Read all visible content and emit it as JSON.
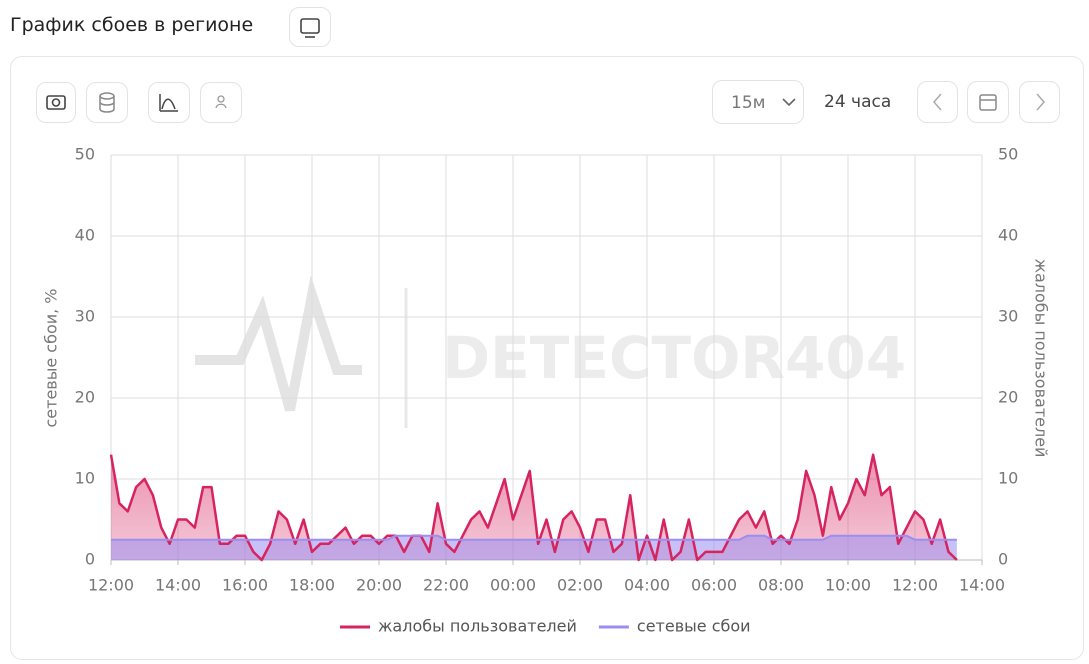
{
  "page_title": "График сбоев в регионе",
  "toolbar": {
    "interval": "15м",
    "range": "24 часа"
  },
  "chart_data": {
    "type": "line",
    "watermark": "DETECTOR404",
    "ylabel": "сетевые сбои, %",
    "y2label": "жалобы пользователей",
    "xlim": [
      0,
      26
    ],
    "xticks": [
      {
        "value": 0,
        "label": "12:00"
      },
      {
        "value": 2,
        "label": "14:00"
      },
      {
        "value": 4,
        "label": "16:00"
      },
      {
        "value": 6,
        "label": "18:00"
      },
      {
        "value": 8,
        "label": "20:00"
      },
      {
        "value": 10,
        "label": "22:00"
      },
      {
        "value": 12,
        "label": "00:00"
      },
      {
        "value": 14,
        "label": "02:00"
      },
      {
        "value": 16,
        "label": "04:00"
      },
      {
        "value": 18,
        "label": "06:00"
      },
      {
        "value": 20,
        "label": "08:00"
      },
      {
        "value": 22,
        "label": "10:00"
      },
      {
        "value": 24,
        "label": "12:00"
      },
      {
        "value": 26,
        "label": "14:00"
      }
    ],
    "ylim": [
      0,
      50
    ],
    "yticks": [
      0,
      10,
      20,
      30,
      40,
      50
    ],
    "y2lim": [
      0,
      50
    ],
    "y2ticks": [
      0,
      10,
      20,
      30,
      40,
      50
    ],
    "grid": true,
    "x": [
      0,
      0.25,
      0.5,
      0.75,
      1,
      1.25,
      1.5,
      1.75,
      2,
      2.25,
      2.5,
      2.75,
      3,
      3.25,
      3.5,
      3.75,
      4,
      4.25,
      4.5,
      4.75,
      5,
      5.25,
      5.5,
      5.75,
      6,
      6.25,
      6.5,
      6.75,
      7,
      7.25,
      7.5,
      7.75,
      8,
      8.25,
      8.5,
      8.75,
      9,
      9.25,
      9.5,
      9.75,
      10,
      10.25,
      10.5,
      10.75,
      11,
      11.25,
      11.5,
      11.75,
      12,
      12.25,
      12.5,
      12.75,
      13,
      13.25,
      13.5,
      13.75,
      14,
      14.25,
      14.5,
      14.75,
      15,
      15.25,
      15.5,
      15.75,
      16,
      16.25,
      16.5,
      16.75,
      17,
      17.25,
      17.5,
      17.75,
      18,
      18.25,
      18.5,
      18.75,
      19,
      19.25,
      19.5,
      19.75,
      20,
      20.25,
      20.5,
      20.75,
      21,
      21.25,
      21.5,
      21.75,
      22,
      22.25,
      22.5,
      22.75,
      23,
      23.25,
      23.5,
      23.75,
      24,
      24.25,
      24.5,
      24.75,
      25,
      25.25
    ],
    "series": [
      {
        "name": "жалобы пользователей",
        "color": "#d6245f",
        "axis": "y2",
        "values": [
          13,
          7,
          6,
          9,
          10,
          8,
          4,
          2,
          5,
          5,
          4,
          9,
          9,
          2,
          2,
          3,
          3,
          1,
          0,
          2,
          6,
          5,
          2,
          5,
          1,
          2,
          2,
          3,
          4,
          2,
          3,
          3,
          2,
          3,
          3,
          1,
          3,
          3,
          1,
          7,
          2,
          1,
          3,
          5,
          6,
          4,
          7,
          10,
          5,
          8,
          11,
          2,
          5,
          1,
          5,
          6,
          4,
          1,
          5,
          5,
          1,
          2,
          8,
          0,
          3,
          0,
          5,
          0,
          1,
          5,
          0,
          1,
          1,
          1,
          3,
          5,
          6,
          4,
          6,
          2,
          3,
          2,
          5,
          11,
          8,
          3,
          9,
          5,
          7,
          10,
          8,
          13,
          8,
          9,
          2,
          4,
          6,
          5,
          2,
          5,
          1,
          0
        ]
      },
      {
        "name": "сетевые сбои",
        "color": "#9b8ef0",
        "values": [
          2.5,
          2.5,
          2.5,
          2.5,
          2.5,
          2.5,
          2.5,
          2.5,
          2.5,
          2.5,
          2.5,
          2.5,
          2.5,
          2.5,
          2.5,
          2.5,
          2.5,
          2.5,
          2.5,
          2.5,
          2.5,
          2.5,
          2.5,
          2.5,
          2.5,
          2.5,
          2.5,
          2.5,
          2.5,
          2.5,
          2.5,
          2.5,
          2.5,
          2.5,
          3,
          3,
          3,
          3,
          3,
          3,
          2.5,
          2.5,
          2.5,
          2.5,
          2.5,
          2.5,
          2.5,
          2.5,
          2.5,
          2.5,
          2.5,
          2.5,
          2.5,
          2.5,
          2.5,
          2.5,
          2.5,
          2.5,
          2.5,
          2.5,
          2.5,
          2.5,
          2.5,
          2.5,
          2.5,
          2.5,
          2.5,
          2.5,
          2.5,
          2.5,
          2.5,
          2.5,
          2.5,
          2.5,
          2.5,
          2.5,
          3,
          3,
          3,
          2.5,
          2.5,
          2.5,
          2.5,
          2.5,
          2.5,
          2.5,
          3,
          3,
          3,
          3,
          3,
          3,
          3,
          3,
          3,
          3,
          2.5,
          2.5,
          2.5,
          2.5,
          2.5,
          2.5
        ]
      }
    ]
  }
}
